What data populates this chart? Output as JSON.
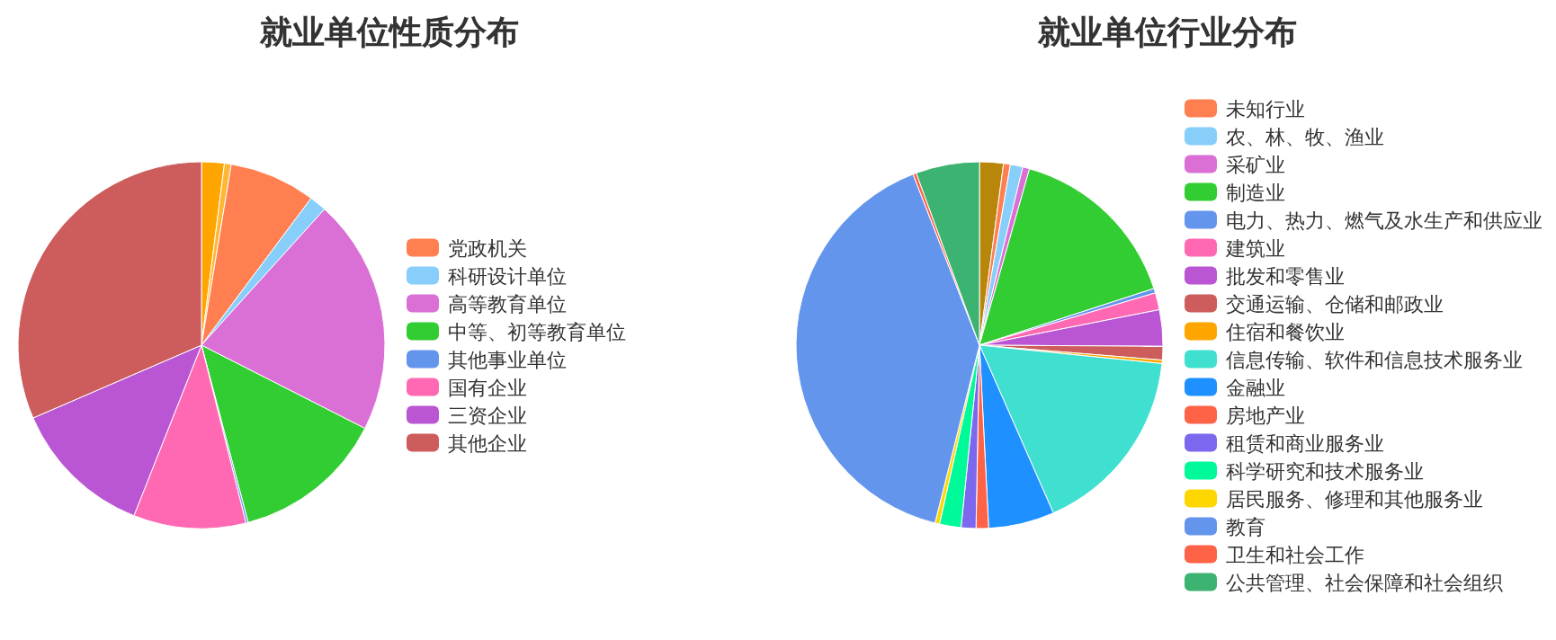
{
  "chart_data": [
    {
      "type": "pie",
      "title": "就业单位性质分布",
      "legend": "right",
      "categories": [
        null,
        null,
        "党政机关",
        "科研设计单位",
        "高等教育单位",
        "中等、初等教育单位",
        "其他事业单位",
        "国有企业",
        "三资企业",
        "其他企业"
      ],
      "values": [
        2.0,
        0.6,
        7.6,
        1.5,
        20.8,
        13.4,
        0.2,
        9.9,
        12.5,
        31.5
      ],
      "colors": [
        "#ffa500",
        "#ffb733",
        "#ff7f50",
        "#87cefa",
        "#da70d6",
        "#32cd32",
        "#6495ed",
        "#ff69b4",
        "#ba55d3",
        "#cd5c5c"
      ]
    },
    {
      "type": "pie",
      "title": "就业单位行业分布",
      "legend": "right",
      "categories": [
        null,
        "未知行业",
        "农、林、牧、渔业",
        "采矿业",
        "制造业",
        "电力、热力、燃气及水生产和供应业",
        "建筑业",
        "批发和零售业",
        "交通运输、仓储和邮政业",
        "住宿和餐饮业",
        "信息传输、软件和信息技术服务业",
        "金融业",
        "房地产业",
        "租赁和商业服务业",
        "科学研究和技术服务业",
        "居民服务、修理和其他服务业",
        "教育",
        "卫生和社会工作",
        "公共管理、社会保障和社会组织"
      ],
      "values": [
        2.1,
        0.6,
        1.1,
        0.6,
        15.6,
        0.4,
        1.5,
        3.2,
        1.2,
        0.3,
        16.8,
        5.8,
        1.1,
        1.3,
        1.9,
        0.4,
        40.2,
        0.3,
        5.6
      ],
      "colors": [
        "#b8860b",
        "#ff7f50",
        "#87cefa",
        "#da70d6",
        "#32cd32",
        "#6495ed",
        "#ff69b4",
        "#ba55d3",
        "#cd5c5c",
        "#ffa500",
        "#40e0d0",
        "#1e90ff",
        "#ff6347",
        "#7b68ee",
        "#00fa9a",
        "#ffd700",
        "#6495ed",
        "#ff6347",
        "#3cb371"
      ]
    }
  ]
}
